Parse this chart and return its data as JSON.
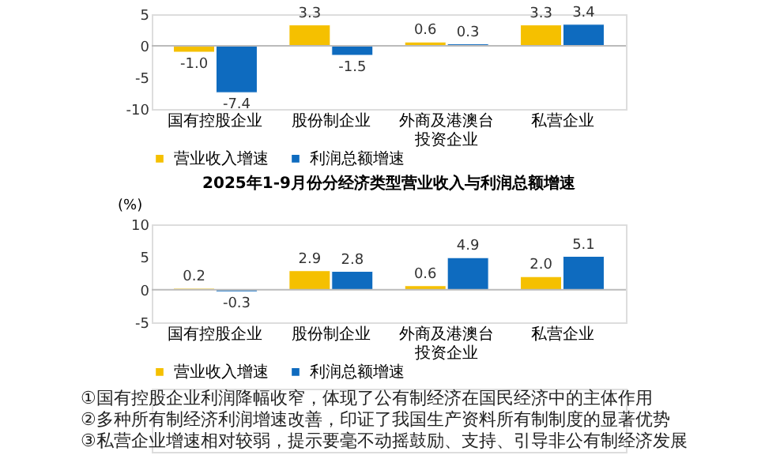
{
  "chart_data": [
    {
      "type": "bar",
      "categories": [
        "国有控股企业",
        "股份制企业",
        "外商及港澳台投资企业",
        "私营企业"
      ],
      "ylim": [
        -10,
        5
      ],
      "yticks": [
        -10,
        -5,
        0,
        5
      ],
      "grid": false,
      "ref_lines": [
        {
          "axis": "y",
          "value": 0,
          "color": "#bbbbbb"
        }
      ],
      "legend": "bottom",
      "series": [
        {
          "name": "营业收入增速",
          "color": "#f5c000",
          "values": [
            -1.0,
            3.3,
            0.6,
            3.3
          ],
          "value_labels": [
            "-1.0",
            "3.3",
            "0.6",
            "3.3"
          ]
        },
        {
          "name": "利润总额增速",
          "color": "#0e6bbf",
          "values": [
            -7.4,
            -1.5,
            0.3,
            3.4
          ],
          "value_labels": [
            "-7.4",
            "-1.5",
            "0.3",
            "3.4"
          ]
        }
      ]
    },
    {
      "type": "bar",
      "title": "2025年1-9月份分经济类型营业收入与利润总额增速",
      "ylabel": "(%)",
      "categories": [
        "国有控股企业",
        "股份制企业",
        "外商及港澳台投资企业",
        "私营企业"
      ],
      "ylim": [
        -5,
        10
      ],
      "yticks": [
        -5,
        0,
        5,
        10
      ],
      "grid": false,
      "ref_lines": [
        {
          "axis": "y",
          "value": 0,
          "color": "#bbbbbb"
        }
      ],
      "legend": "bottom",
      "series": [
        {
          "name": "营业收入增速",
          "color": "#f5c000",
          "values": [
            0.2,
            2.9,
            0.6,
            2.0
          ],
          "value_labels": [
            "0.2",
            "2.9",
            "0.6",
            "2.0"
          ]
        },
        {
          "name": "利润总额增速",
          "color": "#0e6bbf",
          "values": [
            -0.3,
            2.8,
            4.9,
            5.1
          ],
          "value_labels": [
            "-0.3",
            "2.8",
            "4.9",
            "5.1"
          ]
        }
      ],
      "annotations": [
        "①国有控股企业利润降幅收窄，体现了公有制经济在国民经济中的主体作用",
        "②多种所有制经济利润增速改善，印证了我国生产资料所有制制度的显著优势",
        "③私营企业增速相对较弱，提示要毫不动摇鼓励、支持、引导非公有制经济发展"
      ]
    }
  ]
}
